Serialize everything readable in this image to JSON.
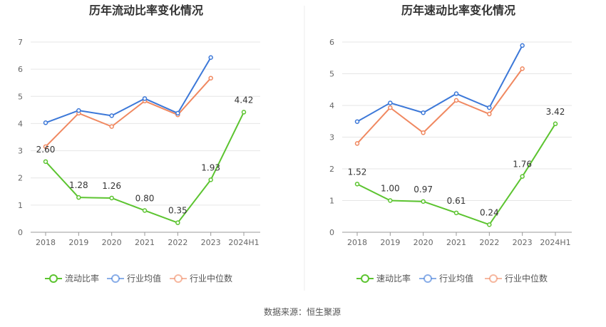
{
  "source": {
    "label": "数据来源：",
    "value": "恒生聚源"
  },
  "colors": {
    "company": "#5cc430",
    "industry_avg": "#3c78d8",
    "industry_median": "#f08860"
  },
  "legend_labels": {
    "left": [
      "流动比率",
      "行业均值",
      "行业中位数"
    ],
    "right": [
      "速动比率",
      "行业均值",
      "行业中位数"
    ]
  },
  "chart_data": [
    {
      "type": "line",
      "title": "历年流动比率变化情况",
      "categories": [
        "2018",
        "2019",
        "2020",
        "2021",
        "2022",
        "2023",
        "2024H1"
      ],
      "yticks": [
        "0",
        "1",
        "2",
        "3",
        "4",
        "5",
        "6",
        "7"
      ],
      "ylim": [
        0,
        7
      ],
      "legend_position": "bottom",
      "grid": true,
      "series": [
        {
          "name": "流动比率",
          "values": [
            2.6,
            1.28,
            1.26,
            0.8,
            0.35,
            1.93,
            4.42
          ],
          "labels": [
            "2.60",
            "1.28",
            "1.26",
            "0.80",
            "0.35",
            "1.93",
            "4.42"
          ]
        },
        {
          "name": "行业均值",
          "values": [
            4.03,
            4.48,
            4.29,
            4.92,
            4.38,
            6.43,
            null
          ]
        },
        {
          "name": "行业中位数",
          "values": [
            3.15,
            4.38,
            3.89,
            4.83,
            4.32,
            5.67,
            null
          ]
        }
      ]
    },
    {
      "type": "line",
      "title": "历年速动比率变化情况",
      "categories": [
        "2018",
        "2019",
        "2020",
        "2021",
        "2022",
        "2023",
        "2024H1"
      ],
      "yticks": [
        "0",
        "1",
        "2",
        "3",
        "4",
        "5",
        "6"
      ],
      "ylim": [
        0,
        6
      ],
      "legend_position": "bottom",
      "grid": true,
      "series": [
        {
          "name": "速动比率",
          "values": [
            1.52,
            1.0,
            0.97,
            0.61,
            0.24,
            1.76,
            3.42
          ],
          "labels": [
            "1.52",
            "1.00",
            "0.97",
            "0.61",
            "0.24",
            "1.76",
            "3.42"
          ]
        },
        {
          "name": "行业均值",
          "values": [
            3.49,
            4.08,
            3.77,
            4.37,
            3.93,
            5.89,
            null
          ]
        },
        {
          "name": "行业中位数",
          "values": [
            2.8,
            3.93,
            3.14,
            4.16,
            3.73,
            5.16,
            null
          ]
        }
      ]
    }
  ]
}
